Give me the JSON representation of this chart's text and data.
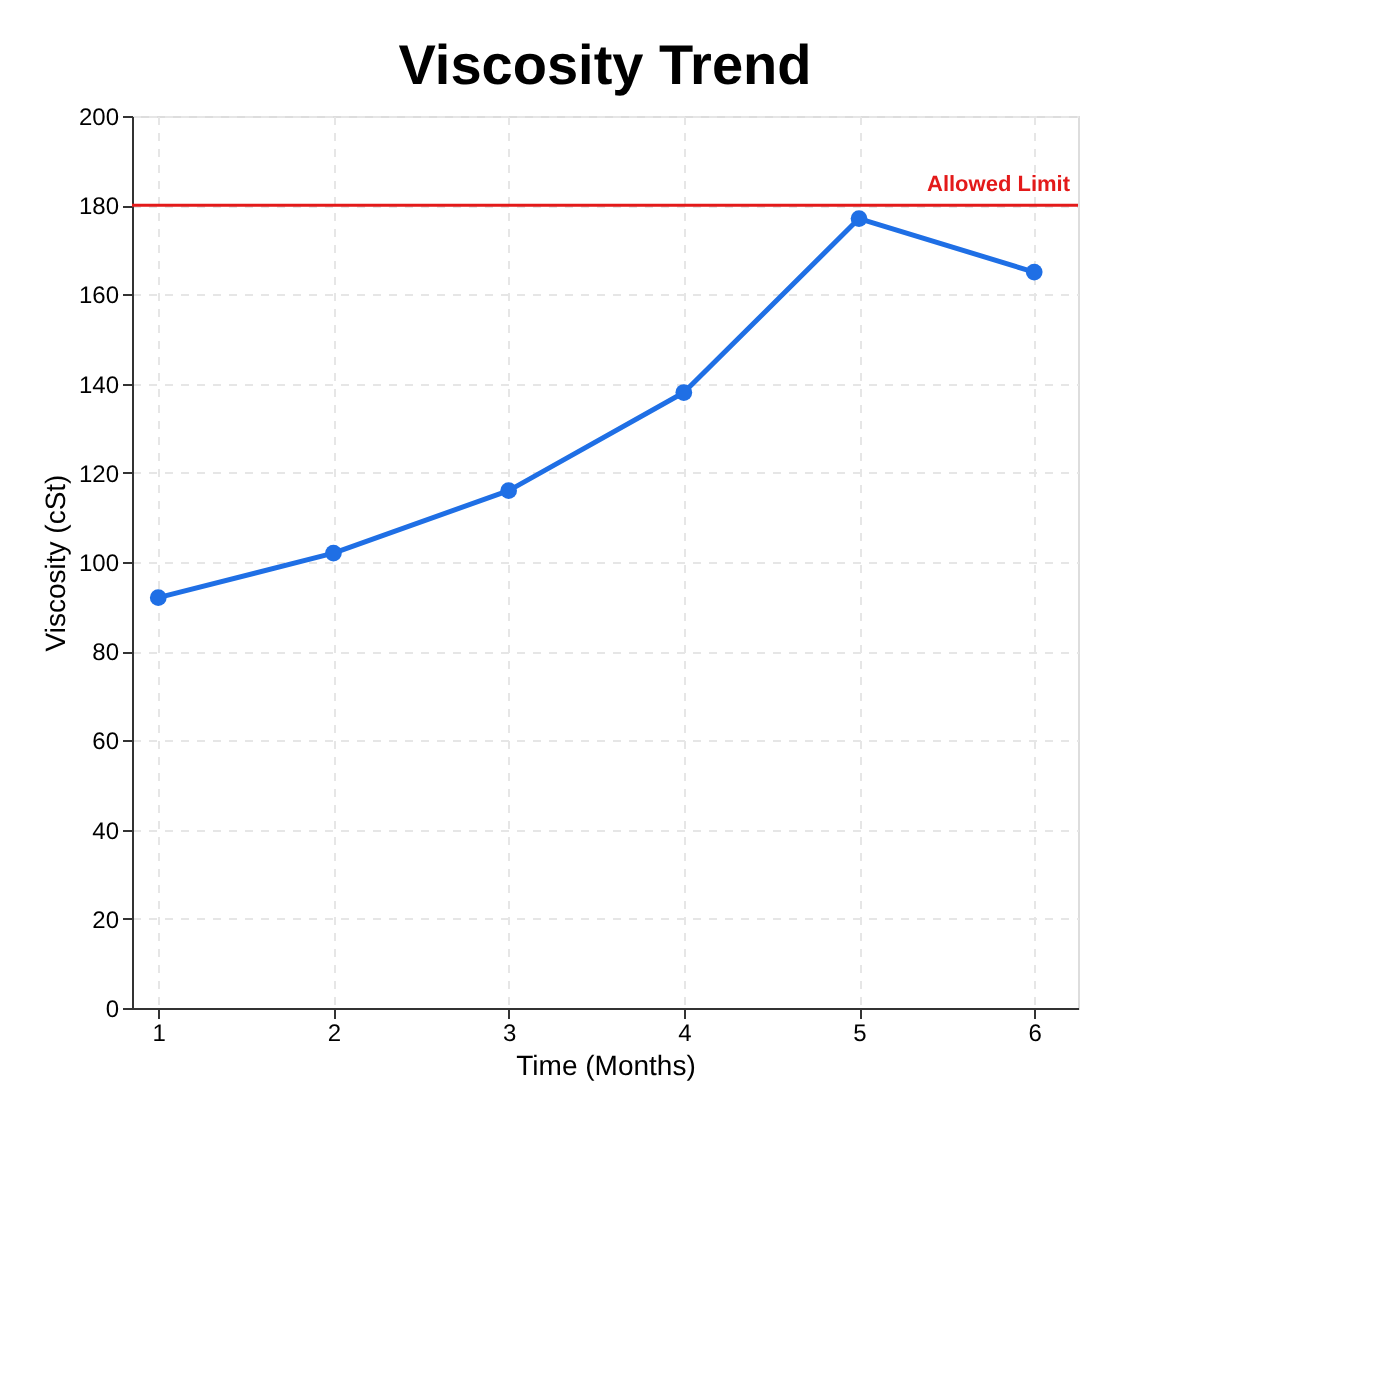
{
  "chart_data": {
    "type": "line",
    "title": "Viscosity Trend",
    "xlabel": "Time (Months)",
    "ylabel": "Viscosity (cSt)",
    "x": [
      1,
      2,
      3,
      4,
      5,
      6
    ],
    "series": [
      {
        "color": "#1f6fe5",
        "values": [
          92,
          102,
          116,
          138,
          177,
          165
        ]
      }
    ],
    "xlim": [
      0.85,
      6.25
    ],
    "xticks": [
      1,
      2,
      3,
      4,
      5,
      6
    ],
    "ylim": [
      0,
      200
    ],
    "yticks": [
      0,
      20,
      40,
      60,
      80,
      100,
      120,
      140,
      160,
      180,
      200
    ],
    "ref_lines": [
      {
        "axis": "y",
        "value": 180,
        "label": "Allowed Limit",
        "color": "#e31a1a"
      }
    ],
    "grid": true,
    "marker": "circle",
    "line_style": "solid"
  }
}
